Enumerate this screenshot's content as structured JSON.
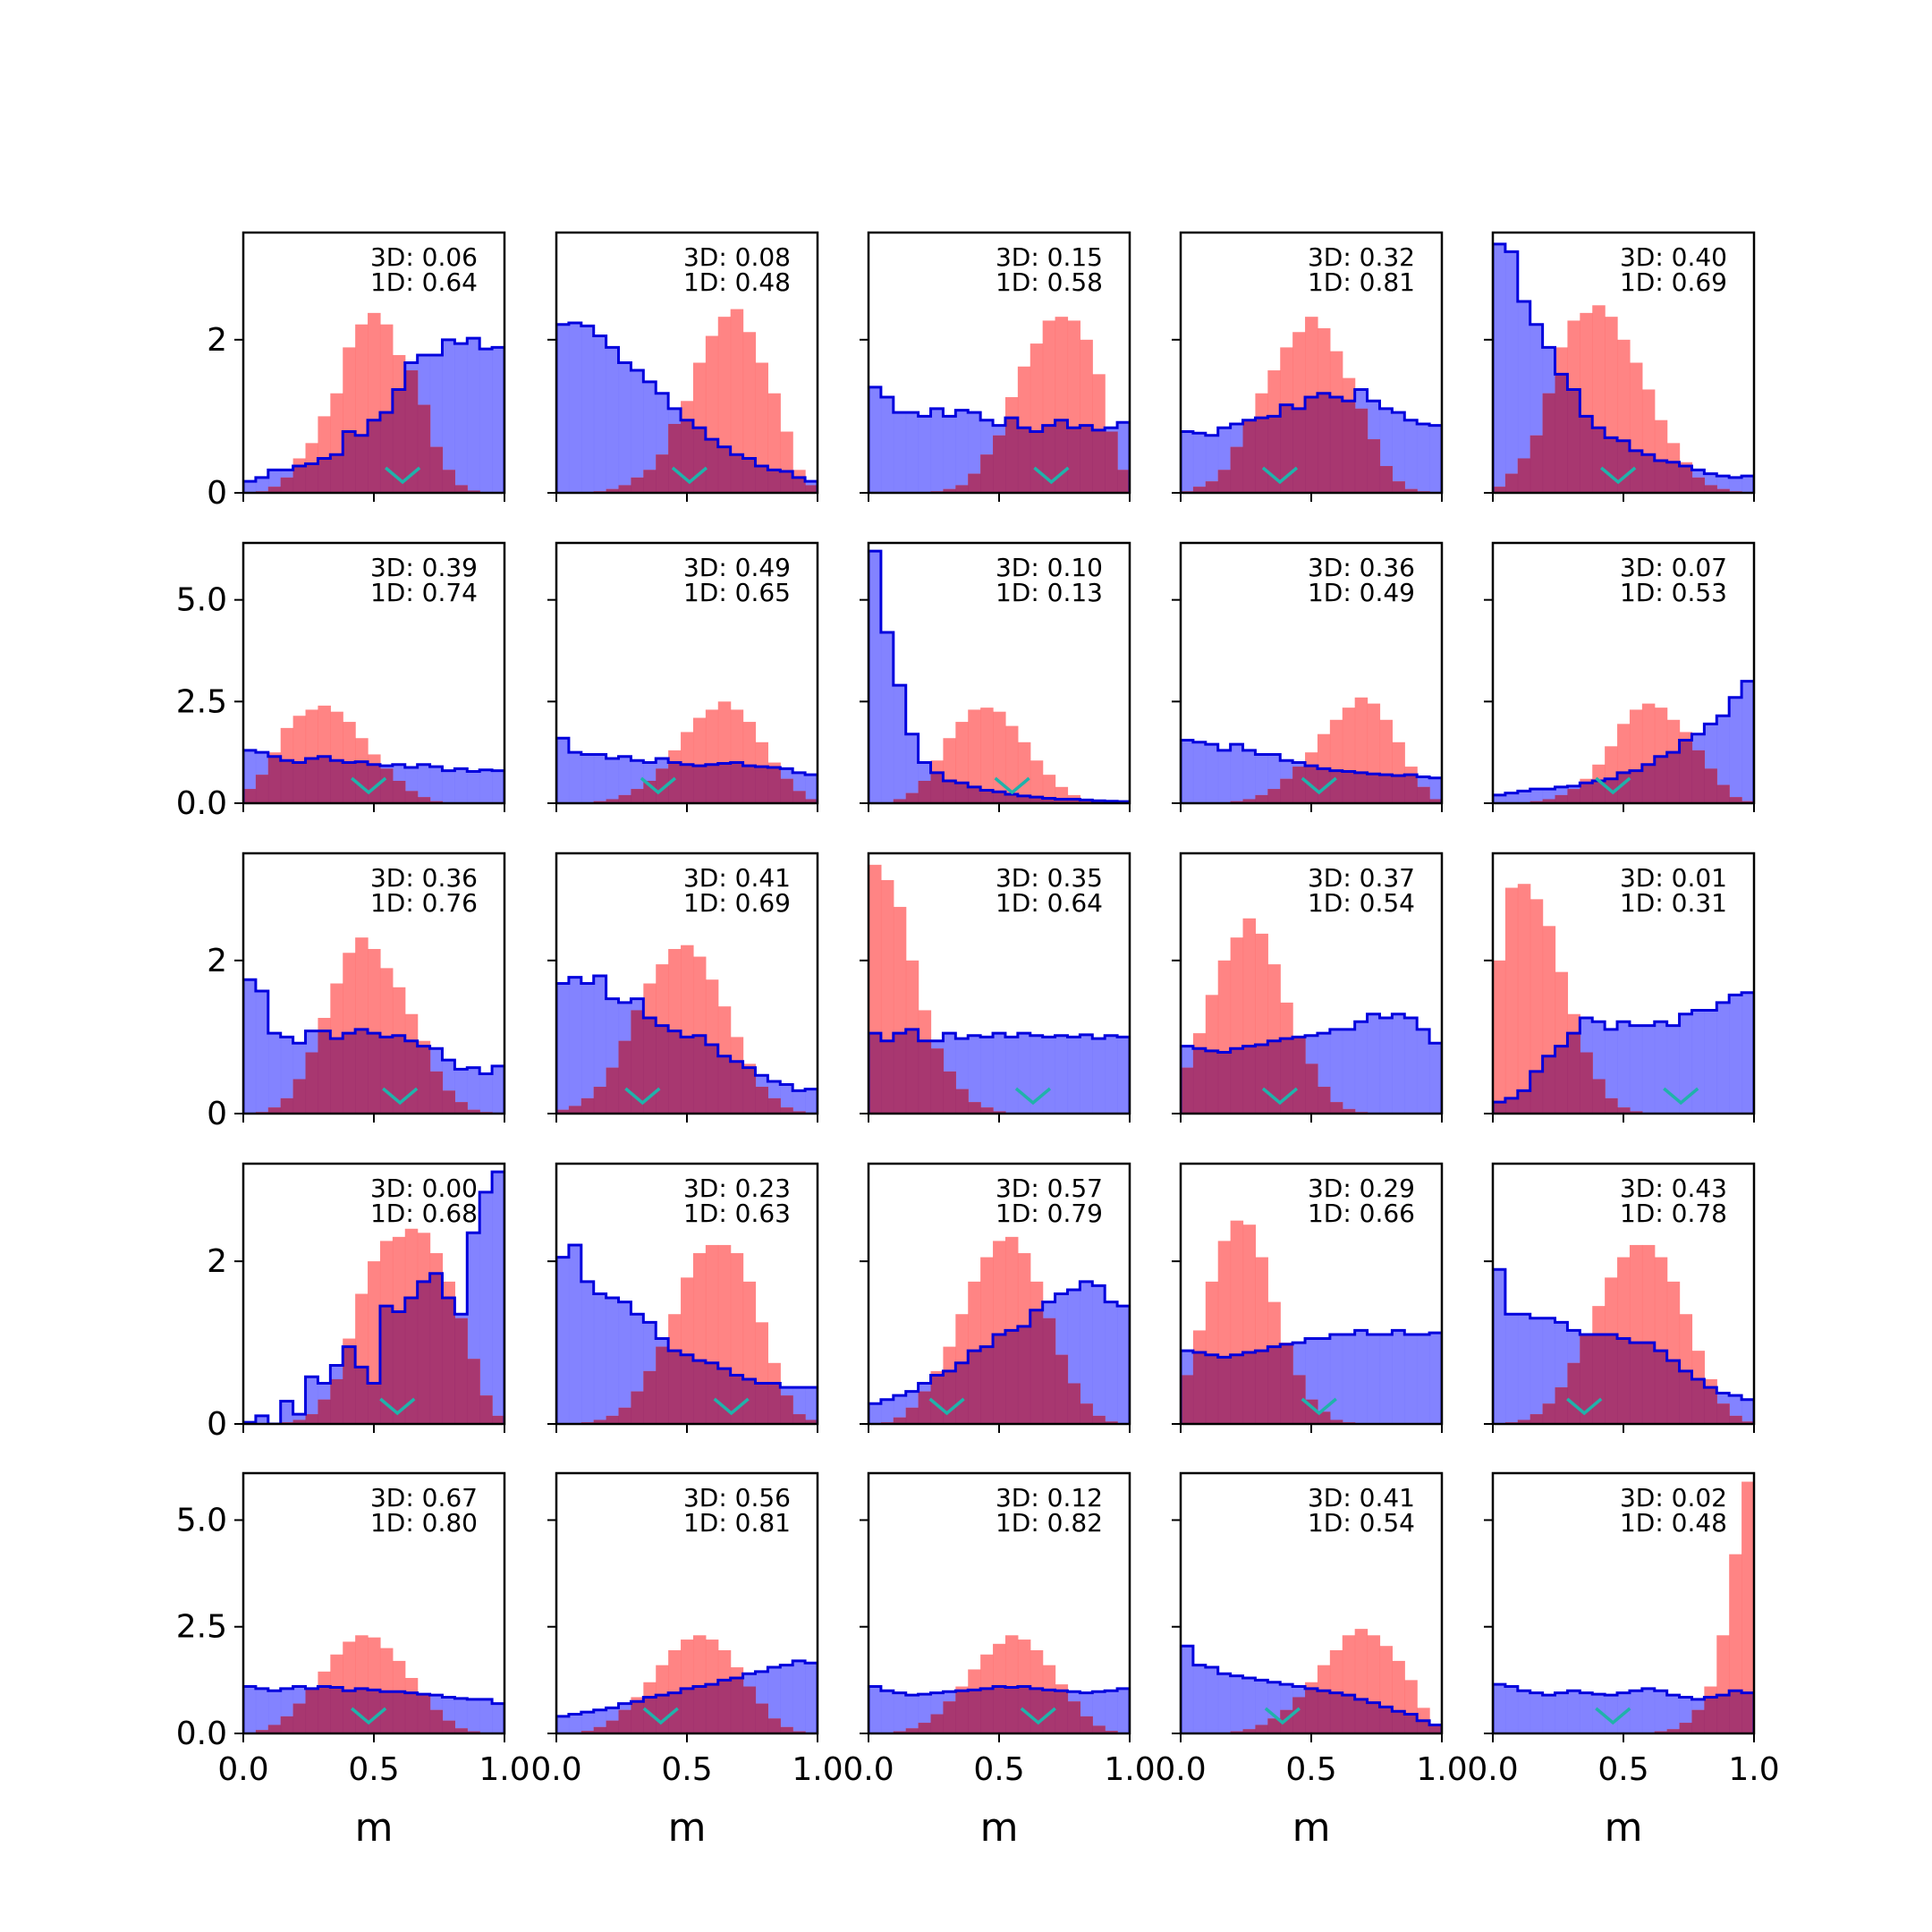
{
  "colors": {
    "blue": "#0000dd",
    "blue_fill": "#7c7cff",
    "red_fill": "#ff7777",
    "marker": "#20b2aa",
    "overlap": "#a0306e"
  },
  "xlabel": "m",
  "x_ticks": [
    "0.0",
    "0.5",
    "1.0"
  ],
  "row_yticks": [
    {
      "vals": [
        0,
        2
      ],
      "labels": [
        "0",
        "2"
      ],
      "ymax": 3.4
    },
    {
      "vals": [
        0,
        2.5,
        5
      ],
      "labels": [
        "0.0",
        "2.5",
        "5.0"
      ],
      "ymax": 6.4
    },
    {
      "vals": [
        0,
        2
      ],
      "labels": [
        "0",
        "2"
      ],
      "ymax": 3.4
    },
    {
      "vals": [
        0,
        2
      ],
      "labels": [
        "0",
        "2"
      ],
      "ymax": 3.2
    },
    {
      "vals": [
        0,
        2.5,
        5
      ],
      "labels": [
        "0.0",
        "2.5",
        "5.0"
      ],
      "ymax": 6.1
    }
  ],
  "chart_data": [
    {
      "type": "histogram",
      "label3d": "3D: 0.06",
      "label1d": "1D: 0.64",
      "marker": 0.61,
      "blue": [
        0.15,
        0.2,
        0.3,
        0.3,
        0.35,
        0.38,
        0.45,
        0.5,
        0.8,
        0.75,
        0.95,
        1.05,
        1.35,
        1.7,
        1.8,
        1.8,
        2.0,
        1.95,
        2.02,
        1.88,
        1.9
      ],
      "red": [
        0.0,
        0.02,
        0.08,
        0.2,
        0.45,
        0.65,
        1.0,
        1.3,
        1.9,
        2.2,
        2.35,
        2.2,
        1.8,
        1.6,
        1.15,
        0.6,
        0.3,
        0.1,
        0.03,
        0.0,
        0.0
      ]
    },
    {
      "type": "histogram",
      "label3d": "3D: 0.08",
      "label1d": "1D: 0.48",
      "marker": 0.51,
      "blue": [
        2.2,
        2.22,
        2.18,
        2.05,
        1.9,
        1.7,
        1.6,
        1.45,
        1.3,
        1.1,
        0.95,
        0.85,
        0.7,
        0.6,
        0.5,
        0.45,
        0.35,
        0.3,
        0.28,
        0.2,
        0.15
      ],
      "red": [
        0.0,
        0.0,
        0.0,
        0.02,
        0.05,
        0.1,
        0.2,
        0.3,
        0.5,
        0.9,
        1.2,
        1.7,
        2.05,
        2.3,
        2.4,
        2.1,
        1.7,
        1.3,
        0.8,
        0.3,
        0.1
      ]
    },
    {
      "type": "histogram",
      "label3d": "3D: 0.15",
      "label1d": "1D: 0.58",
      "marker": 0.7,
      "blue": [
        1.38,
        1.25,
        1.05,
        1.05,
        1.0,
        1.1,
        1.0,
        1.08,
        1.05,
        0.95,
        0.88,
        0.98,
        0.85,
        0.8,
        0.88,
        0.95,
        0.85,
        0.88,
        0.82,
        0.85,
        0.92
      ],
      "red": [
        0.0,
        0.0,
        0.0,
        0.0,
        0.0,
        0.02,
        0.05,
        0.1,
        0.25,
        0.5,
        0.75,
        1.25,
        1.65,
        1.95,
        2.25,
        2.3,
        2.25,
        2.0,
        1.55,
        0.8,
        0.3
      ]
    },
    {
      "type": "histogram",
      "label3d": "3D: 0.32",
      "label1d": "1D: 0.81",
      "marker": 0.38,
      "blue": [
        0.8,
        0.78,
        0.75,
        0.85,
        0.9,
        0.95,
        0.98,
        1.0,
        1.15,
        1.1,
        1.25,
        1.3,
        1.25,
        1.2,
        1.35,
        1.2,
        1.1,
        1.05,
        0.95,
        0.9,
        0.88
      ],
      "red": [
        0.02,
        0.08,
        0.15,
        0.3,
        0.6,
        0.95,
        1.3,
        1.6,
        1.9,
        2.1,
        2.3,
        2.15,
        1.85,
        1.5,
        1.1,
        0.7,
        0.35,
        0.15,
        0.05,
        0.02,
        0.0
      ]
    },
    {
      "type": "histogram",
      "label3d": "3D: 0.40",
      "label1d": "1D: 0.69",
      "marker": 0.48,
      "blue": [
        3.25,
        3.15,
        2.5,
        2.2,
        1.9,
        1.55,
        1.35,
        1.0,
        0.85,
        0.72,
        0.68,
        0.55,
        0.5,
        0.42,
        0.4,
        0.35,
        0.3,
        0.25,
        0.22,
        0.2,
        0.22
      ],
      "red": [
        0.08,
        0.25,
        0.45,
        0.75,
        1.3,
        1.9,
        2.25,
        2.35,
        2.45,
        2.3,
        2.0,
        1.7,
        1.35,
        0.95,
        0.65,
        0.4,
        0.2,
        0.1,
        0.05,
        0.02,
        0.0
      ]
    },
    {
      "type": "histogram",
      "label3d": "3D: 0.39",
      "label1d": "1D: 0.74",
      "marker": 0.48,
      "blue": [
        1.3,
        1.25,
        1.15,
        1.05,
        1.0,
        1.1,
        1.15,
        1.05,
        1.0,
        1.02,
        0.95,
        0.92,
        0.95,
        0.88,
        0.95,
        0.9,
        0.8,
        0.85,
        0.78,
        0.82,
        0.8
      ],
      "red": [
        0.35,
        0.7,
        1.25,
        1.85,
        2.15,
        2.3,
        2.4,
        2.25,
        2.0,
        1.6,
        1.2,
        0.85,
        0.55,
        0.3,
        0.15,
        0.05,
        0.02,
        0.0,
        0.0,
        0.0,
        0.0
      ]
    },
    {
      "type": "histogram",
      "label3d": "3D: 0.49",
      "label1d": "1D: 0.65",
      "marker": 0.39,
      "blue": [
        1.6,
        1.25,
        1.2,
        1.2,
        1.1,
        1.15,
        1.05,
        1.0,
        1.1,
        1.0,
        0.95,
        0.92,
        0.95,
        0.98,
        1.0,
        0.92,
        0.9,
        0.88,
        0.85,
        0.75,
        0.7
      ],
      "red": [
        0.0,
        0.0,
        0.02,
        0.05,
        0.1,
        0.2,
        0.35,
        0.55,
        0.85,
        1.3,
        1.75,
        2.1,
        2.3,
        2.5,
        2.3,
        2.0,
        1.5,
        1.0,
        0.6,
        0.3,
        0.1
      ]
    },
    {
      "type": "histogram",
      "label3d": "3D: 0.10",
      "label1d": "1D: 0.13",
      "marker": 0.55,
      "blue": [
        6.2,
        4.2,
        2.9,
        1.7,
        1.0,
        0.75,
        0.55,
        0.5,
        0.4,
        0.32,
        0.28,
        0.22,
        0.18,
        0.15,
        0.12,
        0.1,
        0.1,
        0.08,
        0.06,
        0.05,
        0.04
      ],
      "red": [
        0.0,
        0.02,
        0.1,
        0.25,
        0.55,
        1.05,
        1.6,
        2.0,
        2.3,
        2.35,
        2.25,
        1.9,
        1.5,
        1.05,
        0.7,
        0.4,
        0.2,
        0.1,
        0.05,
        0.02,
        0.0
      ]
    },
    {
      "type": "histogram",
      "label3d": "3D: 0.36",
      "label1d": "1D: 0.49",
      "marker": 0.53,
      "blue": [
        1.55,
        1.5,
        1.45,
        1.3,
        1.45,
        1.3,
        1.2,
        1.2,
        1.05,
        1.0,
        0.92,
        0.85,
        0.8,
        0.78,
        0.75,
        0.72,
        0.7,
        0.68,
        0.7,
        0.65,
        0.62
      ],
      "red": [
        0.0,
        0.0,
        0.0,
        0.02,
        0.05,
        0.1,
        0.2,
        0.35,
        0.6,
        0.9,
        1.25,
        1.7,
        2.05,
        2.35,
        2.6,
        2.45,
        2.05,
        1.5,
        0.9,
        0.4,
        0.1
      ]
    },
    {
      "type": "histogram",
      "label3d": "3D: 0.07",
      "label1d": "1D: 0.53",
      "marker": 0.46,
      "blue": [
        0.2,
        0.25,
        0.3,
        0.35,
        0.35,
        0.4,
        0.42,
        0.5,
        0.55,
        0.6,
        0.75,
        0.8,
        0.95,
        1.15,
        1.25,
        1.55,
        1.7,
        1.95,
        2.15,
        2.6,
        3.0
      ],
      "red": [
        0.0,
        0.0,
        0.02,
        0.05,
        0.1,
        0.2,
        0.35,
        0.6,
        0.95,
        1.4,
        1.95,
        2.3,
        2.45,
        2.35,
        2.05,
        1.75,
        1.3,
        0.85,
        0.45,
        0.15,
        0.05
      ]
    },
    {
      "type": "histogram",
      "label3d": "3D: 0.36",
      "label1d": "1D: 0.76",
      "marker": 0.6,
      "blue": [
        1.75,
        1.6,
        1.05,
        1.0,
        0.92,
        1.08,
        1.08,
        0.98,
        1.05,
        1.1,
        1.05,
        1.0,
        1.02,
        0.95,
        0.88,
        0.85,
        0.7,
        0.58,
        0.6,
        0.52,
        0.62
      ],
      "red": [
        0.0,
        0.02,
        0.08,
        0.2,
        0.45,
        0.8,
        1.25,
        1.7,
        2.1,
        2.3,
        2.15,
        1.9,
        1.65,
        1.3,
        0.95,
        0.55,
        0.3,
        0.15,
        0.05,
        0.02,
        0.0
      ]
    },
    {
      "type": "histogram",
      "label3d": "3D: 0.41",
      "label1d": "1D: 0.69",
      "marker": 0.33,
      "blue": [
        1.7,
        1.78,
        1.7,
        1.8,
        1.5,
        1.45,
        1.5,
        1.25,
        1.15,
        1.08,
        1.0,
        1.02,
        0.9,
        0.75,
        0.68,
        0.6,
        0.5,
        0.42,
        0.38,
        0.3,
        0.32
      ],
      "red": [
        0.05,
        0.1,
        0.2,
        0.35,
        0.6,
        0.95,
        1.35,
        1.7,
        1.95,
        2.15,
        2.2,
        2.05,
        1.75,
        1.4,
        1.0,
        0.65,
        0.35,
        0.2,
        0.08,
        0.03,
        0.0
      ]
    },
    {
      "type": "histogram",
      "label3d": "3D: 0.35",
      "label1d": "1D: 0.64",
      "marker": 0.63,
      "blue": [
        1.05,
        0.95,
        1.05,
        1.1,
        0.95,
        0.95,
        1.05,
        0.98,
        1.02,
        1.0,
        1.05,
        1.0,
        1.05,
        1.02,
        1.0,
        1.02,
        1.0,
        1.03,
        0.98,
        1.02,
        1.0
      ],
      "red": [
        3.25,
        3.05,
        2.7,
        2.0,
        1.35,
        0.85,
        0.55,
        0.32,
        0.15,
        0.08,
        0.03,
        0.01,
        0.0,
        0.0,
        0.0,
        0.0,
        0.0,
        0.0,
        0.0,
        0.0,
        0.0
      ]
    },
    {
      "type": "histogram",
      "label3d": "3D: 0.37",
      "label1d": "1D: 0.54",
      "marker": 0.38,
      "blue": [
        0.88,
        0.85,
        0.82,
        0.8,
        0.85,
        0.88,
        0.9,
        0.95,
        0.98,
        1.0,
        1.02,
        1.05,
        1.1,
        1.1,
        1.2,
        1.3,
        1.25,
        1.3,
        1.25,
        1.1,
        0.92
      ],
      "red": [
        0.6,
        1.05,
        1.55,
        2.0,
        2.3,
        2.55,
        2.35,
        1.95,
        1.45,
        1.0,
        0.65,
        0.35,
        0.15,
        0.06,
        0.02,
        0.0,
        0.0,
        0.0,
        0.0,
        0.0,
        0.0
      ]
    },
    {
      "type": "histogram",
      "label3d": "3D: 0.01",
      "label1d": "1D: 0.31",
      "marker": 0.72,
      "blue": [
        0.15,
        0.2,
        0.3,
        0.55,
        0.75,
        0.88,
        1.05,
        1.25,
        1.2,
        1.1,
        1.2,
        1.15,
        1.15,
        1.2,
        1.15,
        1.3,
        1.35,
        1.35,
        1.45,
        1.55,
        1.58
      ],
      "red": [
        2.0,
        2.95,
        3.0,
        2.8,
        2.45,
        1.85,
        1.3,
        0.8,
        0.45,
        0.2,
        0.08,
        0.03,
        0.01,
        0.0,
        0.0,
        0.0,
        0.0,
        0.0,
        0.0,
        0.0,
        0.0
      ]
    },
    {
      "type": "histogram",
      "label3d": "3D: 0.00",
      "label1d": "1D: 0.68",
      "marker": 0.59,
      "blue": [
        0.02,
        0.1,
        0.0,
        0.28,
        0.12,
        0.58,
        0.5,
        0.72,
        0.95,
        0.7,
        0.5,
        1.45,
        1.38,
        1.55,
        1.75,
        1.85,
        1.55,
        1.35,
        2.35,
        2.85,
        3.1
      ],
      "red": [
        0.0,
        0.0,
        0.0,
        0.02,
        0.05,
        0.12,
        0.3,
        0.55,
        1.05,
        1.6,
        2.0,
        2.25,
        2.3,
        2.4,
        2.35,
        2.1,
        1.75,
        1.3,
        0.8,
        0.35,
        0.1
      ]
    },
    {
      "type": "histogram",
      "label3d": "3D: 0.23",
      "label1d": "1D: 0.63",
      "marker": 0.67,
      "blue": [
        2.05,
        2.2,
        1.75,
        1.6,
        1.55,
        1.5,
        1.35,
        1.25,
        1.05,
        0.9,
        0.85,
        0.78,
        0.75,
        0.68,
        0.6,
        0.55,
        0.5,
        0.5,
        0.45,
        0.45,
        0.45
      ],
      "red": [
        0.0,
        0.0,
        0.02,
        0.05,
        0.1,
        0.2,
        0.4,
        0.65,
        0.95,
        1.35,
        1.8,
        2.1,
        2.2,
        2.2,
        2.1,
        1.75,
        1.25,
        0.75,
        0.35,
        0.12,
        0.05
      ]
    },
    {
      "type": "histogram",
      "label3d": "3D: 0.57",
      "label1d": "1D: 0.79",
      "marker": 0.3,
      "blue": [
        0.25,
        0.3,
        0.35,
        0.4,
        0.5,
        0.6,
        0.65,
        0.75,
        0.9,
        0.95,
        1.1,
        1.15,
        1.2,
        1.4,
        1.5,
        1.6,
        1.65,
        1.75,
        1.7,
        1.5,
        1.45
      ],
      "red": [
        0.0,
        0.02,
        0.08,
        0.2,
        0.4,
        0.65,
        0.95,
        1.35,
        1.75,
        2.05,
        2.25,
        2.3,
        2.1,
        1.75,
        1.3,
        0.85,
        0.5,
        0.25,
        0.1,
        0.03,
        0.0
      ]
    },
    {
      "type": "histogram",
      "label3d": "3D: 0.29",
      "label1d": "1D: 0.66",
      "marker": 0.53,
      "blue": [
        0.9,
        0.88,
        0.85,
        0.82,
        0.85,
        0.88,
        0.9,
        0.95,
        0.98,
        1.0,
        1.05,
        1.05,
        1.1,
        1.1,
        1.15,
        1.1,
        1.1,
        1.15,
        1.1,
        1.1,
        1.12
      ],
      "red": [
        0.6,
        1.15,
        1.75,
        2.25,
        2.5,
        2.45,
        2.05,
        1.5,
        1.0,
        0.6,
        0.3,
        0.15,
        0.05,
        0.02,
        0.0,
        0.0,
        0.0,
        0.0,
        0.0,
        0.0,
        0.0
      ]
    },
    {
      "type": "histogram",
      "label3d": "3D: 0.43",
      "label1d": "1D: 0.78",
      "marker": 0.35,
      "blue": [
        1.9,
        1.35,
        1.35,
        1.3,
        1.3,
        1.25,
        1.15,
        1.1,
        1.1,
        1.1,
        1.05,
        1.0,
        1.0,
        0.9,
        0.78,
        0.65,
        0.55,
        0.45,
        0.38,
        0.35,
        0.3
      ],
      "red": [
        0.0,
        0.02,
        0.05,
        0.12,
        0.25,
        0.45,
        0.75,
        1.1,
        1.45,
        1.8,
        2.05,
        2.2,
        2.2,
        2.05,
        1.75,
        1.35,
        0.9,
        0.55,
        0.25,
        0.1,
        0.03
      ]
    },
    {
      "type": "histogram",
      "label3d": "3D: 0.67",
      "label1d": "1D: 0.80",
      "marker": 0.48,
      "blue": [
        1.1,
        1.05,
        1.0,
        1.05,
        1.1,
        1.05,
        1.1,
        1.08,
        1.0,
        1.05,
        1.02,
        0.98,
        0.98,
        0.95,
        0.92,
        0.9,
        0.85,
        0.82,
        0.8,
        0.8,
        0.7
      ],
      "red": [
        0.02,
        0.08,
        0.2,
        0.4,
        0.7,
        1.05,
        1.45,
        1.85,
        2.15,
        2.3,
        2.25,
        2.0,
        1.7,
        1.3,
        0.9,
        0.55,
        0.3,
        0.12,
        0.05,
        0.02,
        0.0
      ]
    },
    {
      "type": "histogram",
      "label3d": "3D: 0.56",
      "label1d": "1D: 0.81",
      "marker": 0.4,
      "blue": [
        0.4,
        0.45,
        0.5,
        0.55,
        0.6,
        0.7,
        0.75,
        0.85,
        0.9,
        0.95,
        1.05,
        1.1,
        1.15,
        1.25,
        1.3,
        1.4,
        1.45,
        1.55,
        1.6,
        1.7,
        1.65
      ],
      "red": [
        0.0,
        0.02,
        0.06,
        0.15,
        0.3,
        0.55,
        0.85,
        1.2,
        1.6,
        1.95,
        2.2,
        2.3,
        2.2,
        1.95,
        1.55,
        1.1,
        0.7,
        0.35,
        0.15,
        0.05,
        0.02
      ]
    },
    {
      "type": "histogram",
      "label3d": "3D: 0.12",
      "label1d": "1D: 0.82",
      "marker": 0.65,
      "blue": [
        1.1,
        1.0,
        0.95,
        0.9,
        0.92,
        0.95,
        0.98,
        1.0,
        1.02,
        1.05,
        1.1,
        1.08,
        1.1,
        1.05,
        1.02,
        1.0,
        0.98,
        0.95,
        0.98,
        1.0,
        1.05
      ],
      "red": [
        0.0,
        0.02,
        0.05,
        0.12,
        0.25,
        0.45,
        0.75,
        1.1,
        1.5,
        1.85,
        2.1,
        2.3,
        2.2,
        1.95,
        1.6,
        1.15,
        0.75,
        0.4,
        0.18,
        0.06,
        0.02
      ]
    },
    {
      "type": "histogram",
      "label3d": "3D: 0.41",
      "label1d": "1D: 0.54",
      "marker": 0.39,
      "blue": [
        2.05,
        1.6,
        1.55,
        1.4,
        1.35,
        1.3,
        1.25,
        1.2,
        1.15,
        1.1,
        1.05,
        1.0,
        0.95,
        0.9,
        0.8,
        0.72,
        0.62,
        0.52,
        0.45,
        0.3,
        0.2
      ],
      "red": [
        0.0,
        0.0,
        0.0,
        0.02,
        0.05,
        0.1,
        0.2,
        0.35,
        0.55,
        0.85,
        1.2,
        1.6,
        1.95,
        2.3,
        2.45,
        2.3,
        2.05,
        1.7,
        1.25,
        0.6,
        0.2
      ]
    },
    {
      "type": "histogram",
      "label3d": "3D: 0.02",
      "label1d": "1D: 0.48",
      "marker": 0.46,
      "blue": [
        1.15,
        1.1,
        1.0,
        0.95,
        0.9,
        0.95,
        1.0,
        0.95,
        0.92,
        0.9,
        0.95,
        1.0,
        1.05,
        1.0,
        0.9,
        0.85,
        0.8,
        0.85,
        0.9,
        1.0,
        0.95
      ],
      "red": [
        0.0,
        0.0,
        0.0,
        0.0,
        0.0,
        0.0,
        0.0,
        0.0,
        0.0,
        0.0,
        0.0,
        0.0,
        0.02,
        0.05,
        0.1,
        0.25,
        0.55,
        1.1,
        2.3,
        4.2,
        5.9
      ]
    }
  ]
}
